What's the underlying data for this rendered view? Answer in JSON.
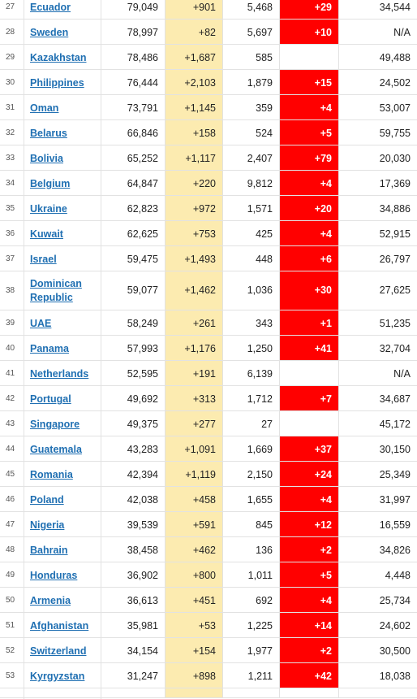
{
  "table": {
    "rows": [
      {
        "rank": "27",
        "country": "Ecuador",
        "cases": "79,049",
        "new_cases": "+901",
        "deaths": "5,468",
        "new_deaths": "+29",
        "recovered": "34,544",
        "multi": false
      },
      {
        "rank": "28",
        "country": "Sweden",
        "cases": "78,997",
        "new_cases": "+82",
        "deaths": "5,697",
        "new_deaths": "+10",
        "recovered": "N/A",
        "multi": false
      },
      {
        "rank": "29",
        "country": "Kazakhstan",
        "cases": "78,486",
        "new_cases": "+1,687",
        "deaths": "585",
        "new_deaths": "",
        "recovered": "49,488",
        "multi": false
      },
      {
        "rank": "30",
        "country": "Philippines",
        "cases": "76,444",
        "new_cases": "+2,103",
        "deaths": "1,879",
        "new_deaths": "+15",
        "recovered": "24,502",
        "multi": false
      },
      {
        "rank": "31",
        "country": "Oman",
        "cases": "73,791",
        "new_cases": "+1,145",
        "deaths": "359",
        "new_deaths": "+4",
        "recovered": "53,007",
        "multi": false
      },
      {
        "rank": "32",
        "country": "Belarus",
        "cases": "66,846",
        "new_cases": "+158",
        "deaths": "524",
        "new_deaths": "+5",
        "recovered": "59,755",
        "multi": false
      },
      {
        "rank": "33",
        "country": "Bolivia",
        "cases": "65,252",
        "new_cases": "+1,117",
        "deaths": "2,407",
        "new_deaths": "+79",
        "recovered": "20,030",
        "multi": false
      },
      {
        "rank": "34",
        "country": "Belgium",
        "cases": "64,847",
        "new_cases": "+220",
        "deaths": "9,812",
        "new_deaths": "+4",
        "recovered": "17,369",
        "multi": false
      },
      {
        "rank": "35",
        "country": "Ukraine",
        "cases": "62,823",
        "new_cases": "+972",
        "deaths": "1,571",
        "new_deaths": "+20",
        "recovered": "34,886",
        "multi": false
      },
      {
        "rank": "36",
        "country": "Kuwait",
        "cases": "62,625",
        "new_cases": "+753",
        "deaths": "425",
        "new_deaths": "+4",
        "recovered": "52,915",
        "multi": false
      },
      {
        "rank": "37",
        "country": "Israel",
        "cases": "59,475",
        "new_cases": "+1,493",
        "deaths": "448",
        "new_deaths": "+6",
        "recovered": "26,797",
        "multi": false
      },
      {
        "rank": "38",
        "country": "Dominican Republic",
        "cases": "59,077",
        "new_cases": "+1,462",
        "deaths": "1,036",
        "new_deaths": "+30",
        "recovered": "27,625",
        "multi": true
      },
      {
        "rank": "39",
        "country": "UAE",
        "cases": "58,249",
        "new_cases": "+261",
        "deaths": "343",
        "new_deaths": "+1",
        "recovered": "51,235",
        "multi": false
      },
      {
        "rank": "40",
        "country": "Panama",
        "cases": "57,993",
        "new_cases": "+1,176",
        "deaths": "1,250",
        "new_deaths": "+41",
        "recovered": "32,704",
        "multi": false
      },
      {
        "rank": "41",
        "country": "Netherlands",
        "cases": "52,595",
        "new_cases": "+191",
        "deaths": "6,139",
        "new_deaths": "",
        "recovered": "N/A",
        "multi": false
      },
      {
        "rank": "42",
        "country": "Portugal",
        "cases": "49,692",
        "new_cases": "+313",
        "deaths": "1,712",
        "new_deaths": "+7",
        "recovered": "34,687",
        "multi": false
      },
      {
        "rank": "43",
        "country": "Singapore",
        "cases": "49,375",
        "new_cases": "+277",
        "deaths": "27",
        "new_deaths": "",
        "recovered": "45,172",
        "multi": false
      },
      {
        "rank": "44",
        "country": "Guatemala",
        "cases": "43,283",
        "new_cases": "+1,091",
        "deaths": "1,669",
        "new_deaths": "+37",
        "recovered": "30,150",
        "multi": false
      },
      {
        "rank": "45",
        "country": "Romania",
        "cases": "42,394",
        "new_cases": "+1,119",
        "deaths": "2,150",
        "new_deaths": "+24",
        "recovered": "25,349",
        "multi": false
      },
      {
        "rank": "46",
        "country": "Poland",
        "cases": "42,038",
        "new_cases": "+458",
        "deaths": "1,655",
        "new_deaths": "+4",
        "recovered": "31,997",
        "multi": false
      },
      {
        "rank": "47",
        "country": "Nigeria",
        "cases": "39,539",
        "new_cases": "+591",
        "deaths": "845",
        "new_deaths": "+12",
        "recovered": "16,559",
        "multi": false
      },
      {
        "rank": "48",
        "country": "Bahrain",
        "cases": "38,458",
        "new_cases": "+462",
        "deaths": "136",
        "new_deaths": "+2",
        "recovered": "34,826",
        "multi": false
      },
      {
        "rank": "49",
        "country": "Honduras",
        "cases": "36,902",
        "new_cases": "+800",
        "deaths": "1,011",
        "new_deaths": "+5",
        "recovered": "4,448",
        "multi": false
      },
      {
        "rank": "50",
        "country": "Armenia",
        "cases": "36,613",
        "new_cases": "+451",
        "deaths": "692",
        "new_deaths": "+4",
        "recovered": "25,734",
        "multi": false
      },
      {
        "rank": "51",
        "country": "Afghanistan",
        "cases": "35,981",
        "new_cases": "+53",
        "deaths": "1,225",
        "new_deaths": "+14",
        "recovered": "24,602",
        "multi": false
      },
      {
        "rank": "52",
        "country": "Switzerland",
        "cases": "34,154",
        "new_cases": "+154",
        "deaths": "1,977",
        "new_deaths": "+2",
        "recovered": "30,500",
        "multi": false
      },
      {
        "rank": "53",
        "country": "Kyrgyzstan",
        "cases": "31,247",
        "new_cases": "+898",
        "deaths": "1,211",
        "new_deaths": "+42",
        "recovered": "18,038",
        "multi": false
      },
      {
        "rank": "",
        "country": "",
        "cases": "",
        "new_cases": "",
        "deaths": "",
        "new_deaths": "",
        "recovered": "",
        "multi": false
      }
    ]
  },
  "colors": {
    "link": "#1f6fb2",
    "new_cases_bg": "#fcebb0",
    "new_deaths_bg": "#ff0000"
  }
}
